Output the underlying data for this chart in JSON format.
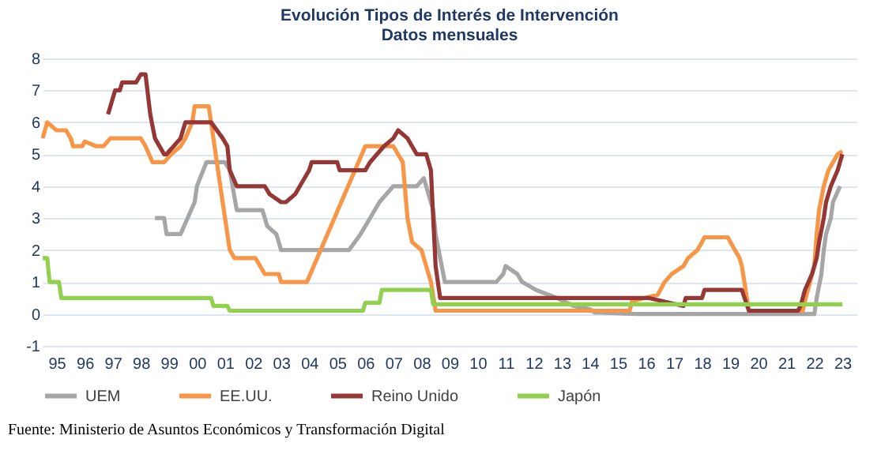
{
  "chart_data": {
    "type": "line",
    "title": "Evolución Tipos de Interés de Intervención",
    "subtitle": "Datos mensuales",
    "xlim": [
      "1995-01",
      "2024-01"
    ],
    "xticks": [
      {
        "value": "1995-07",
        "label": "95"
      },
      {
        "value": "1996-07",
        "label": "96"
      },
      {
        "value": "1997-07",
        "label": "97"
      },
      {
        "value": "1998-07",
        "label": "98"
      },
      {
        "value": "1999-07",
        "label": "99"
      },
      {
        "value": "2000-07",
        "label": "00"
      },
      {
        "value": "2001-07",
        "label": "01"
      },
      {
        "value": "2002-07",
        "label": "02"
      },
      {
        "value": "2003-07",
        "label": "03"
      },
      {
        "value": "2004-07",
        "label": "04"
      },
      {
        "value": "2005-07",
        "label": "05"
      },
      {
        "value": "2006-07",
        "label": "06"
      },
      {
        "value": "2007-07",
        "label": "07"
      },
      {
        "value": "2008-07",
        "label": "08"
      },
      {
        "value": "2009-07",
        "label": "09"
      },
      {
        "value": "2010-07",
        "label": "10"
      },
      {
        "value": "2011-07",
        "label": "11"
      },
      {
        "value": "2012-07",
        "label": "12"
      },
      {
        "value": "2013-07",
        "label": "13"
      },
      {
        "value": "2014-07",
        "label": "14"
      },
      {
        "value": "2015-07",
        "label": "15"
      },
      {
        "value": "2016-07",
        "label": "16"
      },
      {
        "value": "2017-07",
        "label": "17"
      },
      {
        "value": "2018-07",
        "label": "18"
      },
      {
        "value": "2019-07",
        "label": "19"
      },
      {
        "value": "2020-07",
        "label": "20"
      },
      {
        "value": "2021-07",
        "label": "21"
      },
      {
        "value": "2022-07",
        "label": "22"
      },
      {
        "value": "2023-07",
        "label": "23"
      }
    ],
    "ylim": [
      -1,
      8
    ],
    "yticks": [
      -1,
      0,
      1,
      2,
      3,
      4,
      5,
      6,
      7,
      8
    ],
    "grid": "y",
    "legend": "bottom",
    "line_style": "solid",
    "series": [
      {
        "name": "UEM",
        "color": "#a6a6a6",
        "x": [
          "1999-01",
          "1999-05",
          "1999-06",
          "1999-12",
          "2000-03",
          "2000-06",
          "2000-07",
          "2000-11",
          "2001-07",
          "2001-09",
          "2001-12",
          "2002-11",
          "2003-01",
          "2003-05",
          "2003-07",
          "2005-12",
          "2006-05",
          "2006-09",
          "2007-01",
          "2007-07",
          "2008-05",
          "2008-08",
          "2008-12",
          "2009-01",
          "2009-05",
          "2011-03",
          "2011-06",
          "2011-07",
          "2011-12",
          "2012-02",
          "2012-08",
          "2013-05",
          "2013-12",
          "2014-07",
          "2014-09",
          "2016-03",
          "2022-07",
          "2022-08",
          "2022-10",
          "2022-11",
          "2022-12",
          "2023-02",
          "2023-03",
          "2023-06"
        ],
        "values": [
          3.0,
          3.0,
          2.5,
          2.5,
          3.0,
          3.5,
          4.0,
          4.75,
          4.75,
          4.5,
          3.25,
          3.25,
          2.75,
          2.5,
          2.0,
          2.0,
          2.5,
          3.0,
          3.5,
          4.0,
          4.0,
          4.25,
          3.25,
          2.5,
          1.0,
          1.0,
          1.25,
          1.5,
          1.25,
          1.0,
          0.75,
          0.5,
          0.25,
          0.15,
          0.05,
          0,
          0,
          0.5,
          1.25,
          2.0,
          2.5,
          3.0,
          3.5,
          4.0
        ]
      },
      {
        "name": "EE.UU.",
        "color": "#f79646",
        "x": [
          "1995-01",
          "1995-03",
          "1995-07",
          "1995-11",
          "1996-01",
          "1996-02",
          "1996-06",
          "1996-07",
          "1996-12",
          "1997-03",
          "1997-06",
          "1998-07",
          "1998-09",
          "1998-12",
          "1999-05",
          "1999-08",
          "1999-12",
          "2000-02",
          "2000-05",
          "2000-06",
          "2000-12",
          "2001-01",
          "2001-05",
          "2001-09",
          "2001-11",
          "2002-08",
          "2002-12",
          "2003-06",
          "2003-07",
          "2004-06",
          "2006-07",
          "2007-07",
          "2007-11",
          "2008-01",
          "2008-03",
          "2008-07",
          "2008-11",
          "2009-01",
          "2015-12",
          "2016-01",
          "2016-12",
          "2017-03",
          "2017-06",
          "2017-11",
          "2018-01",
          "2018-05",
          "2018-07",
          "2018-08",
          "2019-06",
          "2019-09",
          "2019-11",
          "2019-12",
          "2020-03",
          "2022-02",
          "2022-03",
          "2022-07",
          "2022-08",
          "2022-09",
          "2022-11",
          "2023-01",
          "2023-05",
          "2023-07"
        ],
        "values": [
          5.5,
          6.0,
          5.75,
          5.75,
          5.5,
          5.25,
          5.25,
          5.4,
          5.25,
          5.25,
          5.5,
          5.5,
          5.25,
          4.75,
          4.75,
          5.0,
          5.25,
          5.5,
          6.0,
          6.5,
          6.5,
          6.0,
          4.0,
          2.0,
          1.75,
          1.75,
          1.25,
          1.25,
          1.0,
          1.0,
          5.25,
          5.25,
          4.75,
          3.0,
          2.25,
          2.0,
          1.0,
          0.1,
          0.1,
          0.4,
          0.6,
          1.0,
          1.25,
          1.5,
          1.75,
          2.0,
          2.25,
          2.4,
          2.4,
          2.0,
          1.75,
          1.5,
          0.1,
          0.1,
          0.4,
          1.5,
          2.5,
          3.25,
          4.0,
          4.5,
          5.0,
          5.1
        ]
      },
      {
        "name": "Reino Unido",
        "color": "#953735",
        "x": [
          "1997-05",
          "1997-08",
          "1997-10",
          "1997-11",
          "1998-05",
          "1998-07",
          "1998-09",
          "1998-11",
          "1999-01",
          "1999-05",
          "1999-06",
          "1999-09",
          "1999-12",
          "2000-02",
          "2001-01",
          "2001-06",
          "2001-08",
          "2001-09",
          "2001-12",
          "2002-12",
          "2003-02",
          "2003-07",
          "2003-09",
          "2004-01",
          "2004-03",
          "2004-07",
          "2004-08",
          "2005-07",
          "2005-08",
          "2006-07",
          "2006-09",
          "2006-12",
          "2007-03",
          "2007-07",
          "2007-09",
          "2008-01",
          "2008-03",
          "2008-05",
          "2008-09",
          "2008-11",
          "2008-12",
          "2009-01",
          "2009-03",
          "2016-08",
          "2017-11",
          "2017-12",
          "2018-07",
          "2018-08",
          "2019-12",
          "2020-03",
          "2021-12",
          "2022-01",
          "2022-02",
          "2022-03",
          "2022-06",
          "2022-08",
          "2022-09",
          "2022-11",
          "2022-12",
          "2023-02",
          "2023-05",
          "2023-07"
        ],
        "values": [
          6.25,
          7.0,
          7.0,
          7.25,
          7.25,
          7.5,
          7.5,
          6.25,
          5.5,
          5.0,
          5.0,
          5.25,
          5.5,
          6.0,
          6.0,
          5.5,
          5.25,
          4.5,
          4.0,
          4.0,
          3.75,
          3.5,
          3.5,
          3.75,
          4.0,
          4.5,
          4.75,
          4.75,
          4.5,
          4.5,
          4.75,
          5.0,
          5.25,
          5.5,
          5.75,
          5.5,
          5.25,
          5.0,
          5.0,
          4.5,
          3.0,
          1.5,
          0.5,
          0.5,
          0.25,
          0.5,
          0.5,
          0.75,
          0.75,
          0.1,
          0.1,
          0.25,
          0.5,
          0.75,
          1.25,
          1.75,
          2.25,
          3.0,
          3.5,
          4.0,
          4.5,
          5.0
        ]
      },
      {
        "name": "Japón",
        "color": "#92d050",
        "x": [
          "1995-01",
          "1995-03",
          "1995-04",
          "1995-08",
          "1995-09",
          "2001-01",
          "2001-02",
          "2001-08",
          "2001-09",
          "2006-06",
          "2006-07",
          "2007-01",
          "2007-02",
          "2008-11",
          "2008-12",
          "2023-07"
        ],
        "values": [
          1.75,
          1.75,
          1.0,
          1.0,
          0.5,
          0.5,
          0.25,
          0.25,
          0.1,
          0.1,
          0.35,
          0.35,
          0.75,
          0.75,
          0.3,
          0.3
        ]
      }
    ],
    "annotations": [
      "Fuente: Ministerio de Asuntos Económicos y Transformación Digital"
    ]
  }
}
